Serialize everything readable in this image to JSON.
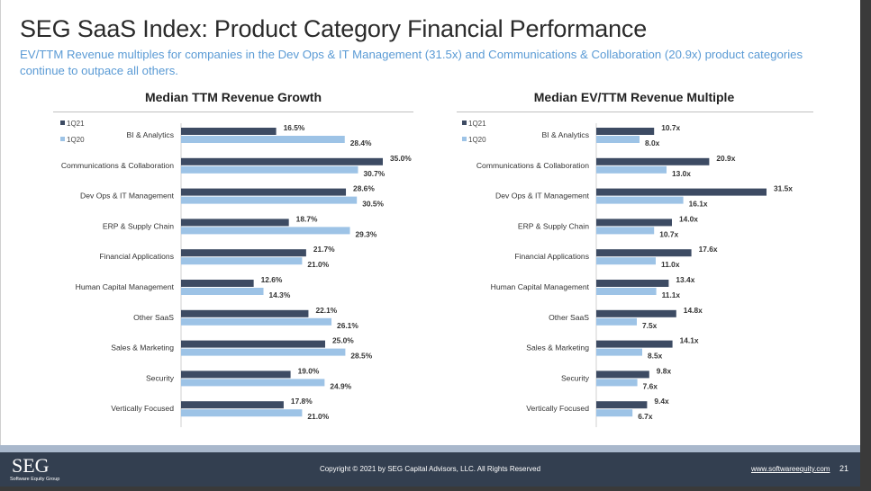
{
  "slide": {
    "title": "SEG SaaS Index: Product Category Financial Performance",
    "subtitle": "EV/TTM Revenue multiples for companies in the Dev Ops & IT Management (31.5x) and Communications & Collaboration (20.9x) product categories continue to outpace all others."
  },
  "colors": {
    "series_1Q21": "#3d4b63",
    "series_1Q20": "#9dc3e6",
    "title": "#2b2b2b",
    "subtitle": "#5b9bd5",
    "footer_bg": "#333f50",
    "footer_band": "#a9b8cc"
  },
  "chart_data": [
    {
      "type": "bar",
      "orientation": "horizontal",
      "title": "Median TTM Revenue Growth",
      "xlabel": "",
      "ylabel": "",
      "unit_suffix": "%",
      "xlim": [
        0,
        35
      ],
      "grid": false,
      "legend_position": "top-left",
      "categories": [
        "BI & Analytics",
        "Communications & Collaboration",
        "Dev Ops & IT Management",
        "ERP & Supply Chain",
        "Financial Applications",
        "Human Capital Management",
        "Other SaaS",
        "Sales & Marketing",
        "Security",
        "Vertically Focused"
      ],
      "series": [
        {
          "name": "1Q21",
          "values": [
            16.5,
            35.0,
            28.6,
            18.7,
            21.7,
            12.6,
            22.1,
            25.0,
            19.0,
            17.8
          ],
          "labels": [
            "16.5%",
            "35.0%",
            "28.6%",
            "18.7%",
            "21.7%",
            "12.6%",
            "22.1%",
            "25.0%",
            "19.0%",
            "17.8%"
          ]
        },
        {
          "name": "1Q20",
          "values": [
            28.4,
            30.7,
            30.5,
            29.3,
            21.0,
            14.3,
            26.1,
            28.5,
            24.9,
            21.0
          ],
          "labels": [
            "28.4%",
            "30.7%",
            "30.5%",
            "29.3%",
            "21.0%",
            "14.3%",
            "26.1%",
            "28.5%",
            "24.9%",
            "21.0%"
          ]
        }
      ]
    },
    {
      "type": "bar",
      "orientation": "horizontal",
      "title": "Median EV/TTM Revenue Multiple",
      "xlabel": "",
      "ylabel": "",
      "unit_suffix": "x",
      "xlim": [
        0,
        31.5
      ],
      "grid": false,
      "legend_position": "top-left",
      "categories": [
        "BI & Analytics",
        "Communications & Collaboration",
        "Dev Ops & IT Management",
        "ERP & Supply Chain",
        "Financial Applications",
        "Human Capital Management",
        "Other SaaS",
        "Sales & Marketing",
        "Security",
        "Vertically Focused"
      ],
      "series": [
        {
          "name": "1Q21",
          "values": [
            10.7,
            20.9,
            31.5,
            14.0,
            17.6,
            13.4,
            14.8,
            14.1,
            9.8,
            9.4
          ],
          "labels": [
            "10.7x",
            "20.9x",
            "31.5x",
            "14.0x",
            "17.6x",
            "13.4x",
            "14.8x",
            "14.1x",
            "9.8x",
            "9.4x"
          ]
        },
        {
          "name": "1Q20",
          "values": [
            8.0,
            13.0,
            16.1,
            10.7,
            11.0,
            11.1,
            7.5,
            8.5,
            7.6,
            6.7
          ],
          "labels": [
            "8.0x",
            "13.0x",
            "16.1x",
            "10.7x",
            "11.0x",
            "11.1x",
            "7.5x",
            "8.5x",
            "7.6x",
            "6.7x"
          ]
        }
      ]
    }
  ],
  "footer": {
    "logo": "SEG",
    "logo_subtitle": "Software Equity Group",
    "copyright": "Copyright © 2021 by SEG Capital Advisors, LLC. All Rights Reserved",
    "website": "www.softwareequity.com",
    "page_number": "21"
  }
}
